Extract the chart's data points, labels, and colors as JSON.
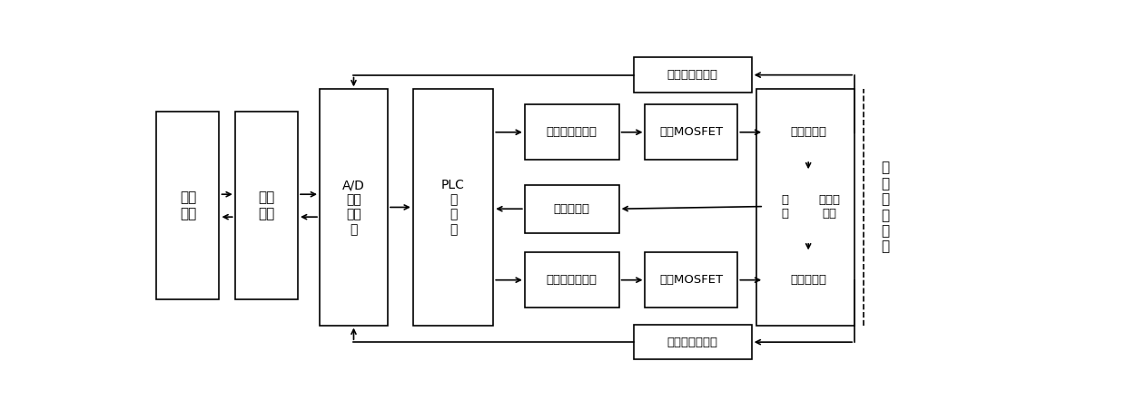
{
  "bg_color": "#ffffff",
  "lw": 1.2,
  "fontsize_main": 11,
  "fontsize_small": 10,
  "fontsize_blower": 11,
  "boxes": {
    "terminal": [
      0.018,
      0.19,
      0.072,
      0.58
    ],
    "comm": [
      0.108,
      0.19,
      0.072,
      0.58
    ],
    "ad": [
      0.205,
      0.12,
      0.078,
      0.73
    ],
    "plc": [
      0.312,
      0.12,
      0.092,
      0.73
    ],
    "amp1": [
      0.44,
      0.168,
      0.108,
      0.17
    ],
    "mosfet1": [
      0.578,
      0.168,
      0.106,
      0.17
    ],
    "disp": [
      0.44,
      0.415,
      0.108,
      0.15
    ],
    "amp2": [
      0.44,
      0.625,
      0.108,
      0.17
    ],
    "mosfet2": [
      0.578,
      0.625,
      0.106,
      0.17
    ],
    "coil_up": [
      0.714,
      0.168,
      0.102,
      0.17
    ],
    "rotor": [
      0.714,
      0.375,
      0.048,
      0.215
    ],
    "bearing": [
      0.763,
      0.375,
      0.053,
      0.215
    ],
    "coil_down": [
      0.714,
      0.625,
      0.102,
      0.17
    ],
    "sensor1": [
      0.565,
      0.022,
      0.135,
      0.108
    ],
    "sensor2": [
      0.565,
      0.848,
      0.135,
      0.108
    ],
    "blower_inner": [
      0.706,
      0.12,
      0.112,
      0.73
    ],
    "blower_label": [
      0.828,
      0.12,
      0.05,
      0.73
    ]
  },
  "labels": {
    "terminal": "终端\n设备",
    "comm": "通讯\n模块",
    "ad": "A/D\n电路\n转换\n器",
    "plc": "PLC\n控\n制\n器",
    "amp1": "第一功率放大器",
    "mosfet1": "第一MOSFET",
    "disp": "位移传感器",
    "amp2": "第二功率放大器",
    "mosfet2": "第二MOSFET",
    "coil_up": "上电磁线圈",
    "rotor": "转\n子",
    "bearing": "磁悬浮\n轴承",
    "coil_down": "下电磁线圈",
    "sensor1": "第一电流传感器",
    "sensor2": "第二电流传感器",
    "blower_label": "磁\n悬\n浮\n鼓\n风\n机"
  },
  "fontsizes": {
    "terminal": 11,
    "comm": 11,
    "ad": 10,
    "plc": 10,
    "amp1": 9.5,
    "mosfet1": 9.5,
    "disp": 9.5,
    "amp2": 9.5,
    "mosfet2": 9.5,
    "coil_up": 9.5,
    "rotor": 9.5,
    "bearing": 9.5,
    "coil_down": 9.5,
    "sensor1": 9.5,
    "sensor2": 9.5,
    "blower_label": 11
  }
}
